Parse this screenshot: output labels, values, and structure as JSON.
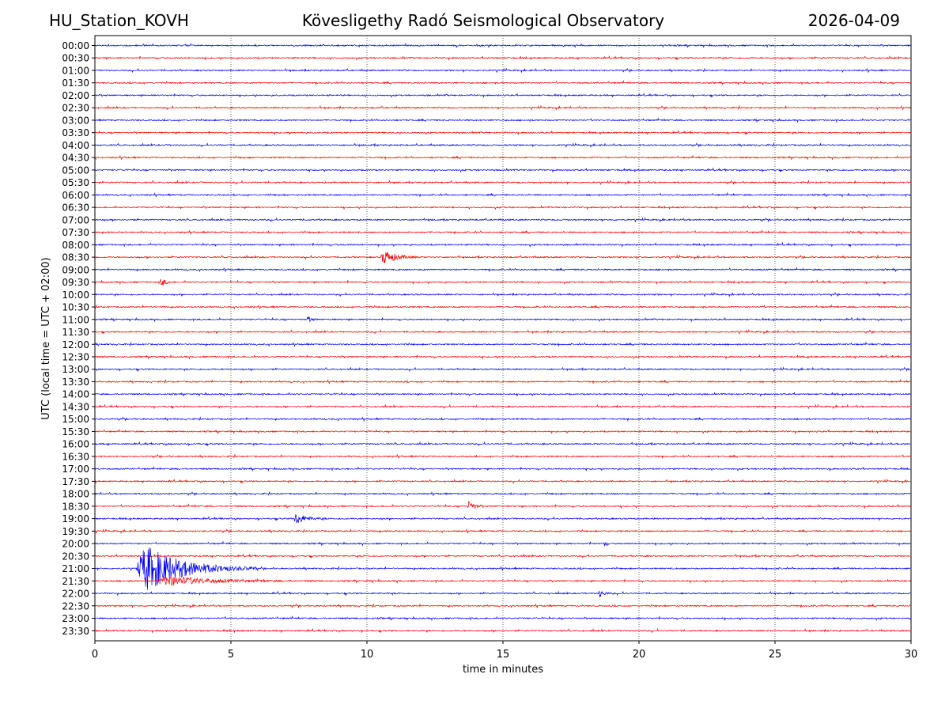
{
  "header": {
    "station": "HU_Station_KOVH",
    "observatory": "Kövesligethy Radó Seismological Observatory",
    "date": "2026-04-09"
  },
  "chart_data": {
    "type": "line",
    "title": "Kövesligethy Radó Seismological Observatory",
    "xlabel": "time in minutes",
    "ylabel": "UTC (local time = UTC + 02:00)",
    "xlim": [
      0,
      30
    ],
    "xticks": [
      0,
      5,
      10,
      15,
      20,
      25,
      30
    ],
    "grid": "vertical dotted lines at 5, 10, 15, 20, 25 minutes",
    "row_labels": [
      "00:00",
      "00:30",
      "01:00",
      "01:30",
      "02:00",
      "02:30",
      "03:00",
      "03:30",
      "04:00",
      "04:30",
      "05:00",
      "05:30",
      "06:00",
      "06:30",
      "07:00",
      "07:30",
      "08:00",
      "08:30",
      "09:00",
      "09:30",
      "10:00",
      "10:30",
      "11:00",
      "11:30",
      "12:00",
      "12:30",
      "13:00",
      "13:30",
      "14:00",
      "14:30",
      "15:00",
      "15:30",
      "16:00",
      "16:30",
      "17:00",
      "17:30",
      "18:00",
      "18:30",
      "19:00",
      "19:30",
      "20:00",
      "20:30",
      "21:00",
      "21:30",
      "22:00",
      "22:30",
      "23:00",
      "23:30"
    ],
    "colors": [
      "#0000ff",
      "#ff0000"
    ],
    "noise_level": 0.12,
    "events": [
      {
        "row": "08:30",
        "start_min": 10.5,
        "duration_min": 1.5,
        "amplitude": 1.4
      },
      {
        "row": "09:30",
        "start_min": 2.4,
        "duration_min": 0.5,
        "amplitude": 0.9
      },
      {
        "row": "11:00",
        "start_min": 7.8,
        "duration_min": 0.4,
        "amplitude": 0.6
      },
      {
        "row": "18:30",
        "start_min": 13.7,
        "duration_min": 0.6,
        "amplitude": 1.0
      },
      {
        "row": "19:00",
        "start_min": 7.3,
        "duration_min": 1.2,
        "amplitude": 1.1
      },
      {
        "row": "20:00",
        "start_min": 18.7,
        "duration_min": 0.3,
        "amplitude": 0.5
      },
      {
        "row": "21:00",
        "start_min": 1.5,
        "duration_min": 4.5,
        "amplitude": 4.5
      },
      {
        "row": "21:30",
        "start_min": 2.3,
        "duration_min": 5.0,
        "amplitude": 0.9
      },
      {
        "row": "22:00",
        "start_min": 18.5,
        "duration_min": 0.6,
        "amplitude": 0.7
      }
    ]
  }
}
